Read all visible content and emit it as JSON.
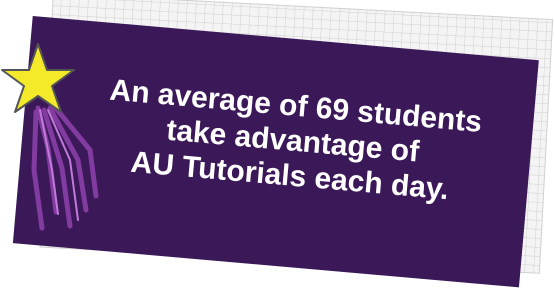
{
  "banner": {
    "lines": [
      "An average of 69 students",
      "take advantage of",
      "AU Tutorials each day."
    ]
  }
}
